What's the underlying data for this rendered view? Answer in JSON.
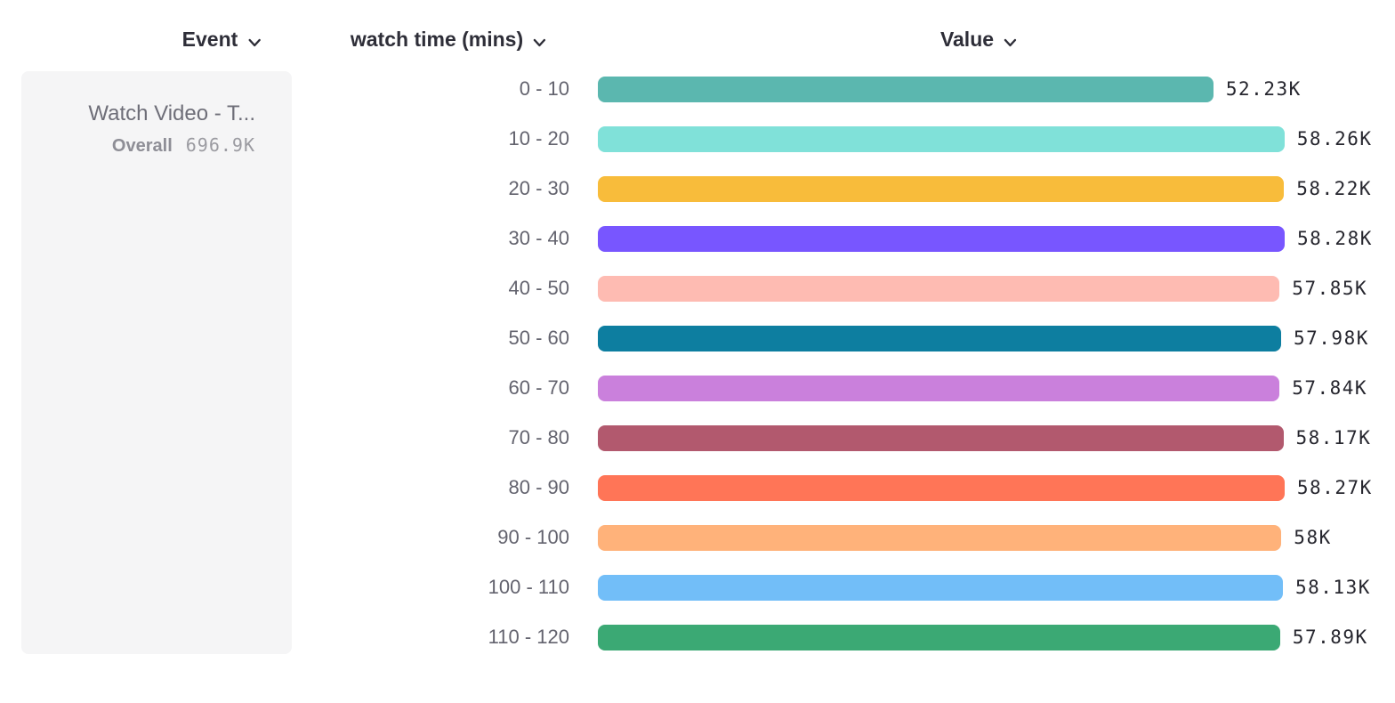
{
  "column_headers": {
    "event": "Event",
    "series": "watch time (mins)",
    "value": "Value"
  },
  "event_card": {
    "event_name": "Watch Video - T...",
    "overall_label": "Overall",
    "overall_value": "696.9K"
  },
  "chart_data": {
    "type": "bar",
    "orientation": "horizontal",
    "series_name": "watch time (mins)",
    "value_axis_label": "Value",
    "categories": [
      "0 - 10",
      "10 - 20",
      "20 - 30",
      "30 - 40",
      "40 - 50",
      "50 - 60",
      "60 - 70",
      "70 - 80",
      "80 - 90",
      "90 - 100",
      "100 - 110",
      "110 - 120"
    ],
    "values": [
      52230,
      58260,
      58220,
      58280,
      57850,
      57980,
      57840,
      58170,
      58270,
      58000,
      58130,
      57890
    ],
    "value_labels": [
      "52.23K",
      "58.26K",
      "58.22K",
      "58.28K",
      "57.85K",
      "57.98K",
      "57.84K",
      "58.17K",
      "58.27K",
      "58K",
      "58.13K",
      "57.89K"
    ],
    "bar_colors": [
      "#5bb7af",
      "#80e1d9",
      "#f8bc3b",
      "#7856ff",
      "#febbb2",
      "#0d7ea0",
      "#ca80dc",
      "#b2596e",
      "#ff7557",
      "#ffb27a",
      "#72bef8",
      "#3ba974"
    ],
    "overall_total": 696900,
    "xlim": [
      0,
      58280
    ],
    "grid": false,
    "legend": false
  },
  "icons": {
    "dropdown": "chevron-down-icon"
  },
  "colors": {
    "header_text": "#2e2e38",
    "bin_label_text": "#63636e",
    "value_text": "#26262e",
    "card_background": "#f5f5f6",
    "muted_text": "#9b9ba1"
  }
}
